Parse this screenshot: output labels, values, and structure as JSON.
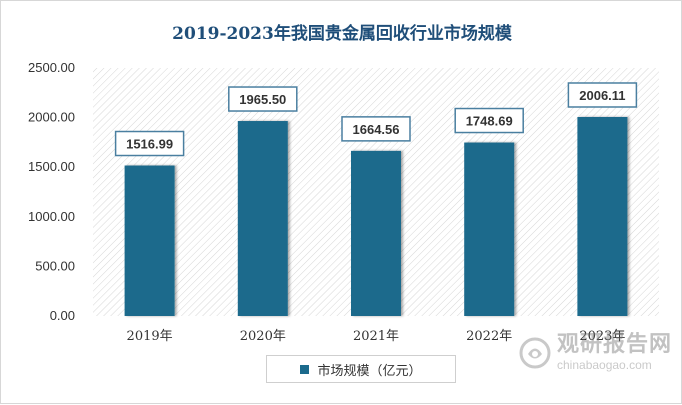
{
  "chart_data": {
    "type": "bar",
    "title": "2019-2023年我国贵金属回收行业市场规模",
    "categories": [
      "2019年",
      "2020年",
      "2021年",
      "2022年",
      "2023年"
    ],
    "series": [
      {
        "name": "市场规模（亿元）",
        "values": [
          1516.99,
          1965.5,
          1664.56,
          1748.69,
          2006.11
        ]
      }
    ],
    "value_labels": [
      "1516.99",
      "1965.50",
      "1664.56",
      "1748.69",
      "2006.11"
    ],
    "yticks": [
      "0.00",
      "500.00",
      "1000.00",
      "1500.00",
      "2000.00",
      "2500.00"
    ],
    "ylim": [
      0,
      2500
    ],
    "grid": false,
    "legend_position": "bottom-center",
    "bar_color": "#1b6a8c",
    "title_color": "#1f4e79"
  },
  "watermark": {
    "brand": "观研报告网",
    "url": "chinabaogao.com"
  }
}
